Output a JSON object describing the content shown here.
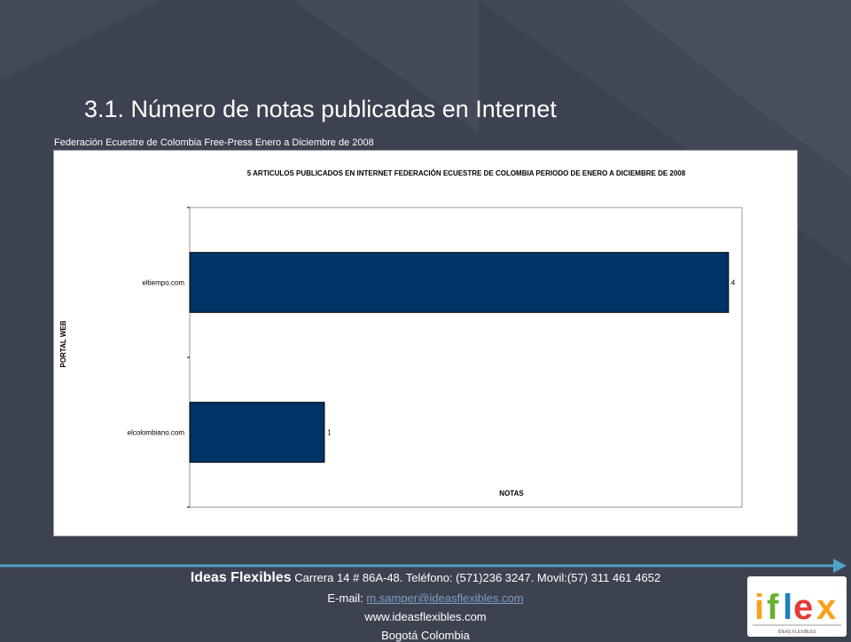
{
  "slide": {
    "title": "3.1. Número de notas publicadas en Internet",
    "caption": "Federación Ecuestre de Colombia  Free-Press Enero a Diciembre de 2008"
  },
  "chart_data": {
    "type": "bar",
    "orientation": "horizontal",
    "title": "5 ARTICULOS PUBLICADOS EN INTERNET FEDERACIÓN ECUESTRE DE COLOMBIA PERIODO DE ENERO A DICIEMBRE DE 2008",
    "xlabel": "NOTAS",
    "ylabel": "PORTAL WEB",
    "categories": [
      "eltiempo.com",
      "elcolombiano.com"
    ],
    "values": [
      4,
      1
    ],
    "data_labels": [
      "4",
      "1"
    ],
    "xlim": [
      0,
      4.1
    ],
    "bar_color": "#003366",
    "grid": false
  },
  "footer": {
    "company": "Ideas Flexibles",
    "address": " Carrera 14 # 86A-48. Teléfono: (571)236 3247. Movil:(57) 311 461 4652",
    "email_label": "E-mail: ",
    "email": "m.samper@ideasflexibles.com",
    "website": "www.ideasflexibles.com",
    "city": "Bogotá Colombia"
  },
  "logo": {
    "text": "iflex",
    "tagline": "IDEAS FLEXIBLES"
  },
  "colors": {
    "background": "#3d4250",
    "accent_line": "#4fa3c7"
  }
}
